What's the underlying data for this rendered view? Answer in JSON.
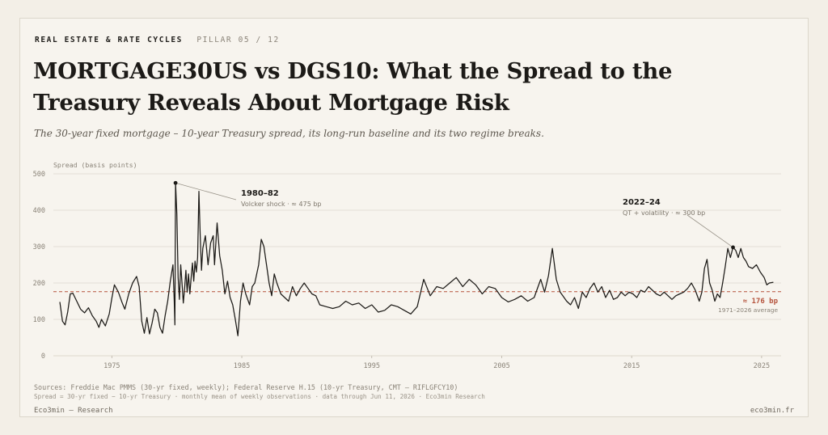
{
  "header": {
    "kicker": "REAL ESTATE & RATE CYCLES",
    "pillar": "PILLAR 05 / 12",
    "title": "MORTGAGE30US vs DGS10: What the Spread to the Treasury Reveals About Mortgage Risk",
    "subtitle": "The 30-year fixed mortgage – 10-year Treasury spread, its long-run baseline and its two regime breaks."
  },
  "footer": {
    "sources": "Sources: Freddie Mac PMMS (30-yr fixed, weekly); Federal Reserve H.15 (10-yr Treasury, CMT — RIFLGFCY10)",
    "method": "Spread = 30-yr fixed − 10-yr Treasury · monthly mean of weekly observations · data through Jun 11, 2026 · Eco3min Research",
    "brand_left": "Eco3min — Research",
    "brand_right": "eco3min.fr"
  },
  "colors": {
    "line": "#1c1a17",
    "average": "#b5533c",
    "grid": "#ddd7cc",
    "annotation_leader": "#9a948a"
  },
  "chart_data": {
    "type": "line",
    "title": "",
    "ylabel": "Spread (basis points)",
    "xlabel": "",
    "xlim": [
      1970.5,
      2026.5
    ],
    "ylim": [
      0,
      500
    ],
    "yticks": [
      0,
      100,
      200,
      300,
      400,
      500
    ],
    "xticks": [
      1975,
      1985,
      1995,
      2005,
      2015,
      2025
    ],
    "grid": true,
    "average": {
      "value": 176,
      "label": "≈ 176 bp",
      "sublabel": "1971–2026 average"
    },
    "annotations": [
      {
        "x": 1979.9,
        "y": 475,
        "title": "1980–82",
        "text": "Volcker shock · ≈ 475 bp"
      },
      {
        "x": 2022.8,
        "y": 298,
        "title": "2022–24",
        "text": "QT + volatility · ≈ 300 bp"
      }
    ],
    "series": [
      {
        "points": [
          [
            1971.0,
            148
          ],
          [
            1971.2,
            95
          ],
          [
            1971.4,
            85
          ],
          [
            1971.6,
            120
          ],
          [
            1971.8,
            170
          ],
          [
            1972.0,
            172
          ],
          [
            1972.3,
            150
          ],
          [
            1972.6,
            128
          ],
          [
            1972.9,
            118
          ],
          [
            1973.2,
            132
          ],
          [
            1973.5,
            110
          ],
          [
            1973.8,
            95
          ],
          [
            1974.0,
            78
          ],
          [
            1974.2,
            100
          ],
          [
            1974.5,
            82
          ],
          [
            1974.8,
            115
          ],
          [
            1975.0,
            158
          ],
          [
            1975.2,
            195
          ],
          [
            1975.5,
            175
          ],
          [
            1975.8,
            145
          ],
          [
            1976.0,
            128
          ],
          [
            1976.3,
            170
          ],
          [
            1976.6,
            200
          ],
          [
            1976.9,
            218
          ],
          [
            1977.1,
            190
          ],
          [
            1977.3,
            95
          ],
          [
            1977.5,
            62
          ],
          [
            1977.7,
            105
          ],
          [
            1977.9,
            60
          ],
          [
            1978.1,
            90
          ],
          [
            1978.3,
            128
          ],
          [
            1978.5,
            118
          ],
          [
            1978.7,
            78
          ],
          [
            1978.9,
            62
          ],
          [
            1979.1,
            110
          ],
          [
            1979.3,
            150
          ],
          [
            1979.5,
            205
          ],
          [
            1979.7,
            250
          ],
          [
            1979.8,
            150
          ],
          [
            1979.85,
            85
          ],
          [
            1979.9,
            475
          ],
          [
            1980.0,
            390
          ],
          [
            1980.1,
            215
          ],
          [
            1980.2,
            155
          ],
          [
            1980.3,
            250
          ],
          [
            1980.4,
            200
          ],
          [
            1980.5,
            145
          ],
          [
            1980.6,
            185
          ],
          [
            1980.7,
            235
          ],
          [
            1980.8,
            175
          ],
          [
            1980.9,
            225
          ],
          [
            1981.0,
            170
          ],
          [
            1981.1,
            215
          ],
          [
            1981.2,
            255
          ],
          [
            1981.3,
            205
          ],
          [
            1981.4,
            260
          ],
          [
            1981.5,
            230
          ],
          [
            1981.6,
            270
          ],
          [
            1981.7,
            452
          ],
          [
            1981.8,
            330
          ],
          [
            1981.9,
            235
          ],
          [
            1982.0,
            295
          ],
          [
            1982.2,
            330
          ],
          [
            1982.4,
            250
          ],
          [
            1982.6,
            310
          ],
          [
            1982.8,
            330
          ],
          [
            1982.9,
            250
          ],
          [
            1983.1,
            365
          ],
          [
            1983.3,
            275
          ],
          [
            1983.5,
            235
          ],
          [
            1983.7,
            170
          ],
          [
            1983.9,
            205
          ],
          [
            1984.1,
            160
          ],
          [
            1984.3,
            140
          ],
          [
            1984.5,
            100
          ],
          [
            1984.7,
            55
          ],
          [
            1984.9,
            150
          ],
          [
            1985.1,
            200
          ],
          [
            1985.3,
            170
          ],
          [
            1985.6,
            140
          ],
          [
            1985.8,
            190
          ],
          [
            1986.0,
            200
          ],
          [
            1986.3,
            250
          ],
          [
            1986.5,
            320
          ],
          [
            1986.7,
            300
          ],
          [
            1986.9,
            250
          ],
          [
            1987.1,
            200
          ],
          [
            1987.3,
            165
          ],
          [
            1987.5,
            225
          ],
          [
            1987.7,
            200
          ],
          [
            1988.0,
            170
          ],
          [
            1988.3,
            160
          ],
          [
            1988.6,
            150
          ],
          [
            1988.9,
            190
          ],
          [
            1989.2,
            165
          ],
          [
            1989.5,
            185
          ],
          [
            1989.8,
            200
          ],
          [
            1990.1,
            185
          ],
          [
            1990.4,
            170
          ],
          [
            1990.7,
            165
          ],
          [
            1991.0,
            140
          ],
          [
            1991.5,
            135
          ],
          [
            1992.0,
            130
          ],
          [
            1992.5,
            135
          ],
          [
            1993.0,
            150
          ],
          [
            1993.5,
            140
          ],
          [
            1994.0,
            145
          ],
          [
            1994.5,
            130
          ],
          [
            1995.0,
            140
          ],
          [
            1995.5,
            120
          ],
          [
            1996.0,
            125
          ],
          [
            1996.5,
            140
          ],
          [
            1997.0,
            135
          ],
          [
            1997.5,
            125
          ],
          [
            1998.0,
            115
          ],
          [
            1998.5,
            135
          ],
          [
            1998.8,
            180
          ],
          [
            1999.0,
            210
          ],
          [
            1999.5,
            165
          ],
          [
            2000.0,
            190
          ],
          [
            2000.5,
            185
          ],
          [
            2001.0,
            200
          ],
          [
            2001.5,
            215
          ],
          [
            2002.0,
            190
          ],
          [
            2002.5,
            210
          ],
          [
            2003.0,
            195
          ],
          [
            2003.5,
            170
          ],
          [
            2004.0,
            190
          ],
          [
            2004.5,
            185
          ],
          [
            2005.0,
            160
          ],
          [
            2005.5,
            148
          ],
          [
            2006.0,
            155
          ],
          [
            2006.5,
            165
          ],
          [
            2007.0,
            150
          ],
          [
            2007.5,
            160
          ],
          [
            2008.0,
            210
          ],
          [
            2008.3,
            175
          ],
          [
            2008.6,
            220
          ],
          [
            2008.9,
            295
          ],
          [
            2009.2,
            210
          ],
          [
            2009.5,
            175
          ],
          [
            2009.8,
            160
          ],
          [
            2010.0,
            150
          ],
          [
            2010.3,
            140
          ],
          [
            2010.6,
            160
          ],
          [
            2010.9,
            130
          ],
          [
            2011.2,
            175
          ],
          [
            2011.5,
            160
          ],
          [
            2011.8,
            185
          ],
          [
            2012.1,
            200
          ],
          [
            2012.4,
            175
          ],
          [
            2012.7,
            190
          ],
          [
            2013.0,
            160
          ],
          [
            2013.3,
            180
          ],
          [
            2013.6,
            155
          ],
          [
            2013.9,
            160
          ],
          [
            2014.2,
            175
          ],
          [
            2014.5,
            165
          ],
          [
            2014.8,
            175
          ],
          [
            2015.1,
            170
          ],
          [
            2015.4,
            160
          ],
          [
            2015.7,
            180
          ],
          [
            2016.0,
            175
          ],
          [
            2016.3,
            190
          ],
          [
            2016.6,
            180
          ],
          [
            2016.9,
            170
          ],
          [
            2017.2,
            165
          ],
          [
            2017.5,
            175
          ],
          [
            2017.8,
            165
          ],
          [
            2018.1,
            155
          ],
          [
            2018.4,
            165
          ],
          [
            2018.7,
            170
          ],
          [
            2019.0,
            175
          ],
          [
            2019.3,
            185
          ],
          [
            2019.6,
            200
          ],
          [
            2019.9,
            180
          ],
          [
            2020.2,
            150
          ],
          [
            2020.4,
            175
          ],
          [
            2020.6,
            240
          ],
          [
            2020.8,
            265
          ],
          [
            2021.0,
            200
          ],
          [
            2021.2,
            180
          ],
          [
            2021.4,
            150
          ],
          [
            2021.6,
            170
          ],
          [
            2021.8,
            160
          ],
          [
            2022.0,
            200
          ],
          [
            2022.2,
            245
          ],
          [
            2022.4,
            295
          ],
          [
            2022.6,
            270
          ],
          [
            2022.8,
            298
          ],
          [
            2023.0,
            290
          ],
          [
            2023.2,
            270
          ],
          [
            2023.4,
            295
          ],
          [
            2023.6,
            270
          ],
          [
            2023.8,
            260
          ],
          [
            2024.0,
            245
          ],
          [
            2024.3,
            240
          ],
          [
            2024.6,
            250
          ],
          [
            2024.9,
            230
          ],
          [
            2025.2,
            215
          ],
          [
            2025.4,
            195
          ],
          [
            2025.6,
            200
          ],
          [
            2025.9,
            202
          ]
        ]
      }
    ]
  }
}
